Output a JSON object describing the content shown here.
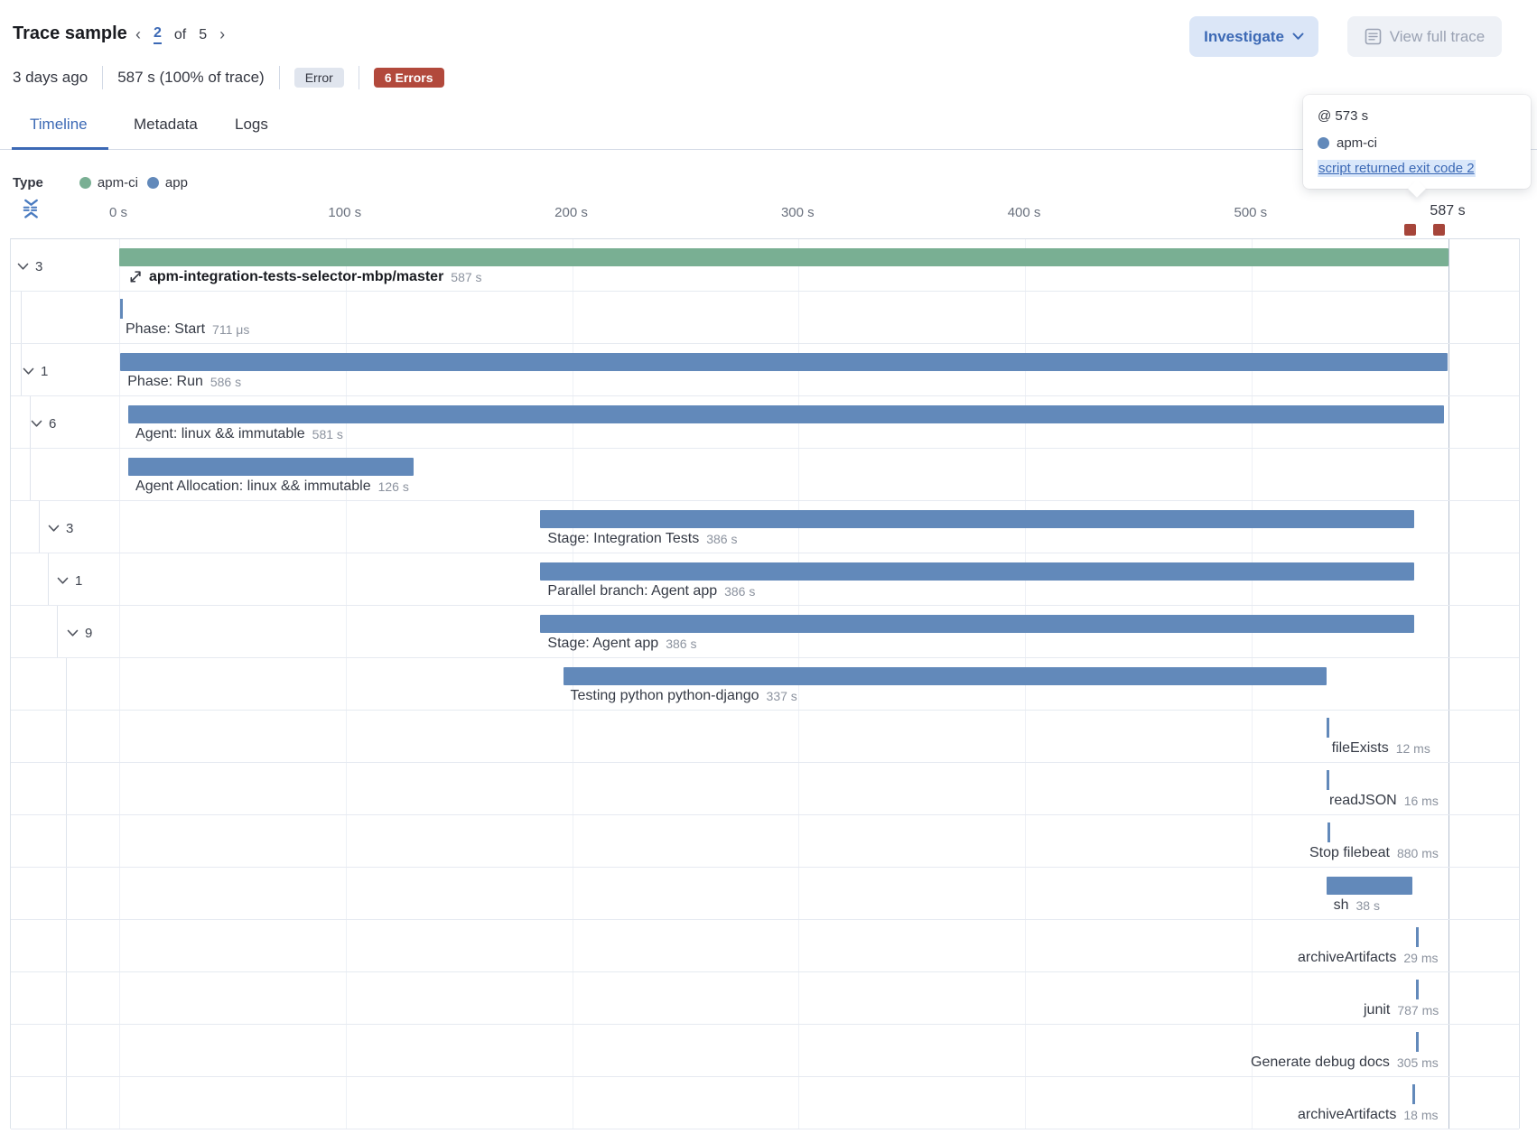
{
  "header": {
    "title": "Trace sample",
    "pager": {
      "prev": "‹",
      "current": "2",
      "of_label": "of",
      "total": "5",
      "next": "›"
    },
    "investigate_label": "Investigate",
    "view_full_trace_label": "View full trace"
  },
  "subheader": {
    "age": "3 days ago",
    "duration_summary": "587 s (100% of trace)",
    "outcome_badge": "Error",
    "errors_badge": "6 Errors"
  },
  "tabs": [
    {
      "label": "Timeline",
      "active": true
    },
    {
      "label": "Metadata",
      "active": false
    },
    {
      "label": "Logs",
      "active": false
    }
  ],
  "tooltip": {
    "timestamp": "@ 573 s",
    "service": "apm-ci",
    "error_message": "script returned exit code 2"
  },
  "legend": {
    "label": "Type",
    "items": [
      {
        "name": "apm-ci"
      },
      {
        "name": "app"
      }
    ]
  },
  "colors": {
    "apm-ci": "#79af93",
    "app": "#6289ba",
    "error": "#a6453a",
    "primary": "#3c69b5"
  },
  "chart_data": {
    "type": "waterfall-timeline",
    "x_unit": "s",
    "x_range": [
      0,
      587
    ],
    "axis_ticks_s": [
      0,
      100,
      200,
      300,
      400,
      500
    ],
    "axis_tick_labels": [
      "0 s",
      "100 s",
      "200 s",
      "300 s",
      "400 s",
      "500 s"
    ],
    "end_tick_label": "587 s",
    "error_markers_s": [
      570.3,
      583.2
    ],
    "rows": [
      {
        "label": "apm-integration-tests-selector-mbp/master",
        "duration_label": "587 s",
        "start_s": 0,
        "duration_s": 587,
        "type": "apm-ci",
        "depth": 0,
        "children_count": 3,
        "kind": "bar",
        "emphasis": true,
        "has_icon": true
      },
      {
        "label": "Phase: Start",
        "duration_label": "711 μs",
        "start_s": 0.4,
        "duration_s": 0.0007,
        "type": "app",
        "depth": 1,
        "children_count": null,
        "kind": "tick"
      },
      {
        "label": "Phase: Run",
        "duration_label": "586 s",
        "start_s": 0.5,
        "duration_s": 586,
        "type": "app",
        "depth": 1,
        "children_count": 1,
        "kind": "bar"
      },
      {
        "label": "Agent: linux && immutable",
        "duration_label": "581 s",
        "start_s": 4,
        "duration_s": 581,
        "type": "app",
        "depth": 2,
        "children_count": 6,
        "kind": "bar"
      },
      {
        "label": "Agent Allocation: linux && immutable",
        "duration_label": "126 s",
        "start_s": 4,
        "duration_s": 126,
        "type": "app",
        "depth": 2,
        "children_count": null,
        "kind": "bar"
      },
      {
        "label": "Stage: Integration Tests",
        "duration_label": "386 s",
        "start_s": 186,
        "duration_s": 386,
        "type": "app",
        "depth": 3,
        "children_count": 3,
        "kind": "bar"
      },
      {
        "label": "Parallel branch: Agent app",
        "duration_label": "386 s",
        "start_s": 186,
        "duration_s": 386,
        "type": "app",
        "depth": 4,
        "children_count": 1,
        "kind": "bar"
      },
      {
        "label": "Stage: Agent app",
        "duration_label": "386 s",
        "start_s": 186,
        "duration_s": 386,
        "type": "app",
        "depth": 5,
        "children_count": 9,
        "kind": "bar"
      },
      {
        "label": "Testing python python-django",
        "duration_label": "337 s",
        "start_s": 196,
        "duration_s": 337,
        "type": "app",
        "depth": 6,
        "children_count": null,
        "kind": "bar"
      },
      {
        "label": "fileExists",
        "duration_label": "12 ms",
        "start_s": 533,
        "duration_s": 0.012,
        "type": "app",
        "depth": 6,
        "children_count": null,
        "kind": "tick"
      },
      {
        "label": "readJSON",
        "duration_label": "16 ms",
        "start_s": 533,
        "duration_s": 0.016,
        "type": "app",
        "depth": 6,
        "children_count": null,
        "kind": "tick"
      },
      {
        "label": "Stop filebeat",
        "duration_label": "880 ms",
        "start_s": 533.5,
        "duration_s": 0.88,
        "type": "app",
        "depth": 6,
        "children_count": null,
        "kind": "tick"
      },
      {
        "label": "sh",
        "duration_label": "38 s",
        "start_s": 533,
        "duration_s": 38,
        "type": "app",
        "depth": 6,
        "children_count": null,
        "kind": "bar"
      },
      {
        "label": "archiveArtifacts",
        "duration_label": "29 ms",
        "start_s": 572.5,
        "duration_s": 0.029,
        "type": "app",
        "depth": 6,
        "children_count": null,
        "kind": "tick"
      },
      {
        "label": "junit",
        "duration_label": "787 ms",
        "start_s": 572.5,
        "duration_s": 0.787,
        "type": "app",
        "depth": 6,
        "children_count": null,
        "kind": "tick"
      },
      {
        "label": "Generate debug docs",
        "duration_label": "305 ms",
        "start_s": 572.5,
        "duration_s": 0.305,
        "type": "app",
        "depth": 6,
        "children_count": null,
        "kind": "tick"
      },
      {
        "label": "archiveArtifacts",
        "duration_label": "18 ms",
        "start_s": 571,
        "duration_s": 0.018,
        "type": "app",
        "depth": 6,
        "children_count": null,
        "kind": "tick"
      }
    ]
  }
}
